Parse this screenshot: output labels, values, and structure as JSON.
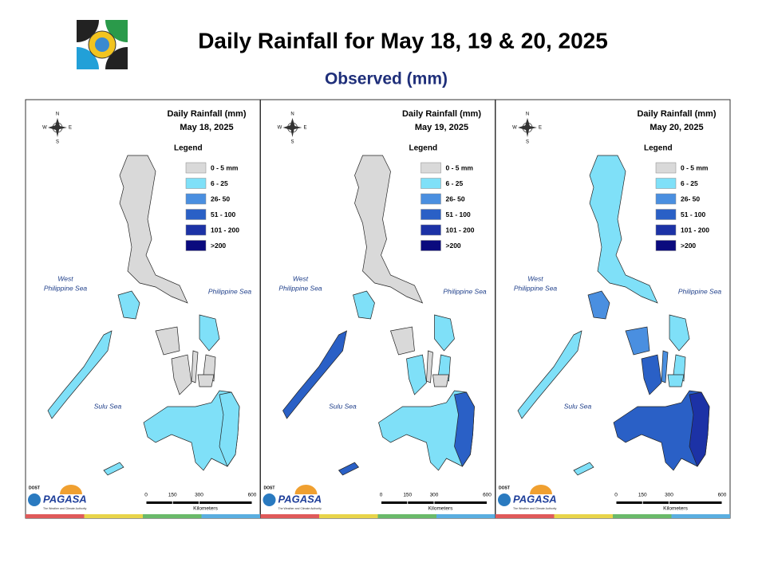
{
  "header": {
    "title": "Daily Rainfall for May 18, 19 & 20, 2025",
    "subtitle": "Observed (mm)"
  },
  "panels": [
    {
      "title": "Daily Rainfall (mm)",
      "date": "May 18, 2025"
    },
    {
      "title": "Daily Rainfall (mm)",
      "date": "May 19, 2025"
    },
    {
      "title": "Daily Rainfall (mm)",
      "date": "May 20, 2025"
    }
  ],
  "legend": {
    "title": "Legend",
    "items": [
      {
        "label": "0 - 5 mm",
        "color": "#d9d9d9"
      },
      {
        "label": "6 - 25",
        "color": "#7fe0f8"
      },
      {
        "label": "26- 50",
        "color": "#4a8fe0"
      },
      {
        "label": "51 - 100",
        "color": "#2a60c6"
      },
      {
        "label": "101 - 200",
        "color": "#1c32a6"
      },
      {
        "label": ">200",
        "color": "#0a0a7e"
      }
    ]
  },
  "seas": {
    "west": [
      "West",
      "Philippine Sea"
    ],
    "east": "Philippine Sea",
    "south": "Sulu Sea"
  },
  "compass": {
    "n": "N",
    "e": "E",
    "s": "S",
    "w": "W"
  },
  "scale": {
    "ticks": [
      0,
      150,
      300,
      600
    ],
    "unit": "Kilometers"
  },
  "logo": {
    "agency": "DOST",
    "name": "PAGASA",
    "tagline": "The Weather and Climate Authority"
  }
}
